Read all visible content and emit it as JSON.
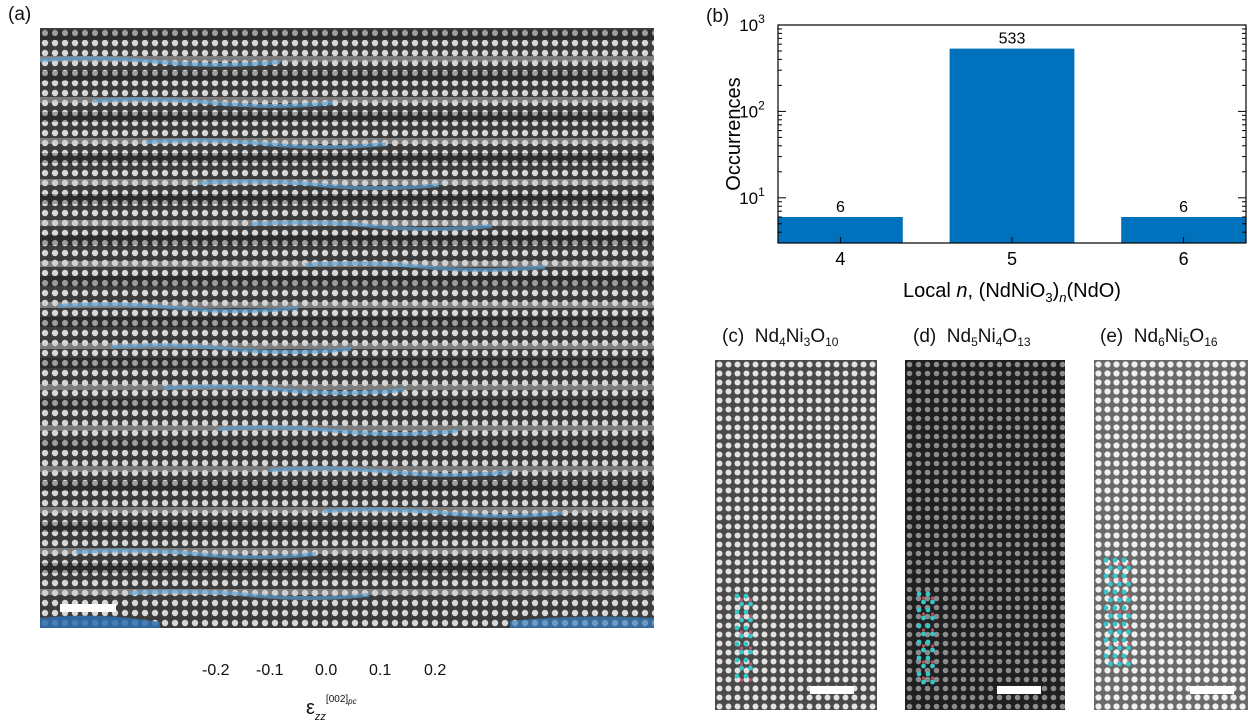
{
  "panels": {
    "a": "(a)",
    "b": "(b)",
    "c": "(c)",
    "d": "(d)",
    "e": "(e)"
  },
  "colorbar": {
    "ticks": [
      "-0.2",
      "-0.1",
      "0.0",
      "0.1",
      "0.2"
    ],
    "label_symbol": "ε",
    "label_subscript": "zz",
    "label_superscript": "[002]",
    "label_superscript_sub": "pc",
    "colors": [
      "#67001f",
      "#b2182b",
      "#d6604d",
      "#f4a582",
      "#fddbc7",
      "#f7f7f7",
      "#d1e5f0",
      "#92c5de",
      "#4393c3",
      "#2166ac",
      "#053061"
    ]
  },
  "chart_data": {
    "type": "bar",
    "categories": [
      "4",
      "5",
      "6"
    ],
    "values": [
      6,
      533,
      6
    ],
    "value_labels": [
      "6",
      "533",
      "6"
    ],
    "ylabel": "Occurrences",
    "xlabel_parts": {
      "prefix": "Local ",
      "n": "n",
      "sep": ", (NdNiO",
      "three": "3",
      "close": ")",
      "sub_n": "n",
      "tail": "(NdO)"
    },
    "yscale": "log",
    "ylim": [
      3,
      1000
    ],
    "yticks": [
      {
        "base": "10",
        "exp": "1",
        "value": 10
      },
      {
        "base": "10",
        "exp": "2",
        "value": 100
      },
      {
        "base": "10",
        "exp": "3",
        "value": 1000
      }
    ],
    "bar_color": "#0072bd",
    "grid": false
  },
  "compounds": [
    {
      "parts": [
        [
          "Nd",
          ""
        ],
        [
          "4",
          "sub"
        ],
        [
          "Ni",
          ""
        ],
        [
          "3",
          "sub"
        ],
        [
          "O",
          ""
        ],
        [
          "10",
          "sub"
        ]
      ]
    },
    {
      "parts": [
        [
          "Nd",
          ""
        ],
        [
          "5",
          "sub"
        ],
        [
          "Ni",
          ""
        ],
        [
          "4",
          "sub"
        ],
        [
          "O",
          ""
        ],
        [
          "13",
          "sub"
        ]
      ]
    },
    {
      "parts": [
        [
          "Nd",
          ""
        ],
        [
          "6",
          "sub"
        ],
        [
          "Ni",
          ""
        ],
        [
          "5",
          "sub"
        ],
        [
          "O",
          ""
        ],
        [
          "16",
          "sub"
        ]
      ]
    }
  ]
}
